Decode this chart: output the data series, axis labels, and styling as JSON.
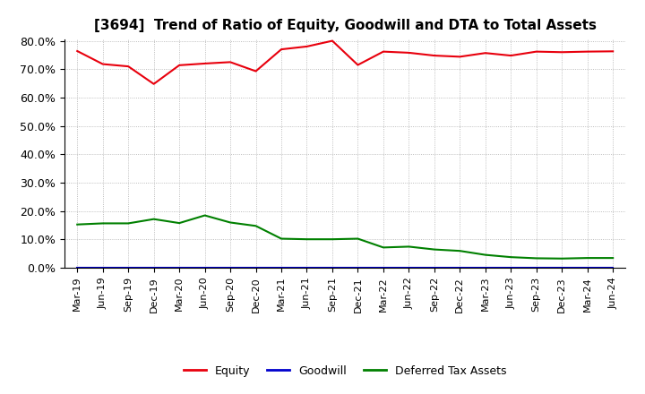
{
  "title": "[3694]  Trend of Ratio of Equity, Goodwill and DTA to Total Assets",
  "x_labels": [
    "Mar-19",
    "Jun-19",
    "Sep-19",
    "Dec-19",
    "Mar-20",
    "Jun-20",
    "Sep-20",
    "Dec-20",
    "Mar-21",
    "Jun-21",
    "Sep-21",
    "Dec-21",
    "Mar-22",
    "Jun-22",
    "Sep-22",
    "Dec-22",
    "Mar-23",
    "Jun-23",
    "Sep-23",
    "Dec-23",
    "Mar-24",
    "Jun-24"
  ],
  "equity": [
    0.764,
    0.718,
    0.71,
    0.648,
    0.714,
    0.72,
    0.725,
    0.693,
    0.77,
    0.78,
    0.8,
    0.715,
    0.762,
    0.758,
    0.748,
    0.744,
    0.757,
    0.748,
    0.762,
    0.76,
    0.762,
    0.763
  ],
  "goodwill": [
    0.0,
    0.0,
    0.0,
    0.0,
    0.0,
    0.0,
    0.0,
    0.0,
    0.0,
    0.0,
    0.0,
    0.0,
    0.0,
    0.0,
    0.0,
    0.0,
    0.0,
    0.0,
    0.0,
    0.0,
    0.0,
    0.0
  ],
  "dta": [
    0.153,
    0.157,
    0.157,
    0.172,
    0.158,
    0.185,
    0.16,
    0.148,
    0.103,
    0.101,
    0.101,
    0.103,
    0.072,
    0.075,
    0.065,
    0.06,
    0.046,
    0.038,
    0.034,
    0.033,
    0.035,
    0.035
  ],
  "equity_color": "#e8000d",
  "goodwill_color": "#0000cd",
  "dta_color": "#008000",
  "ylim_min": 0.0,
  "ylim_max": 0.8,
  "yticks": [
    0.0,
    0.1,
    0.2,
    0.3,
    0.4,
    0.5,
    0.6,
    0.7,
    0.8
  ],
  "ytick_labels": [
    "0.0%",
    "10.0%",
    "20.0%",
    "30.0%",
    "40.0%",
    "50.0%",
    "60.0%",
    "70.0%",
    "80.0%"
  ],
  "background_color": "#ffffff",
  "plot_bg_color": "#ffffff",
  "grid_color": "#aaaaaa",
  "legend_entries": [
    "Equity",
    "Goodwill",
    "Deferred Tax Assets"
  ],
  "title_fontsize": 11,
  "tick_fontsize": 9,
  "xtick_fontsize": 8
}
